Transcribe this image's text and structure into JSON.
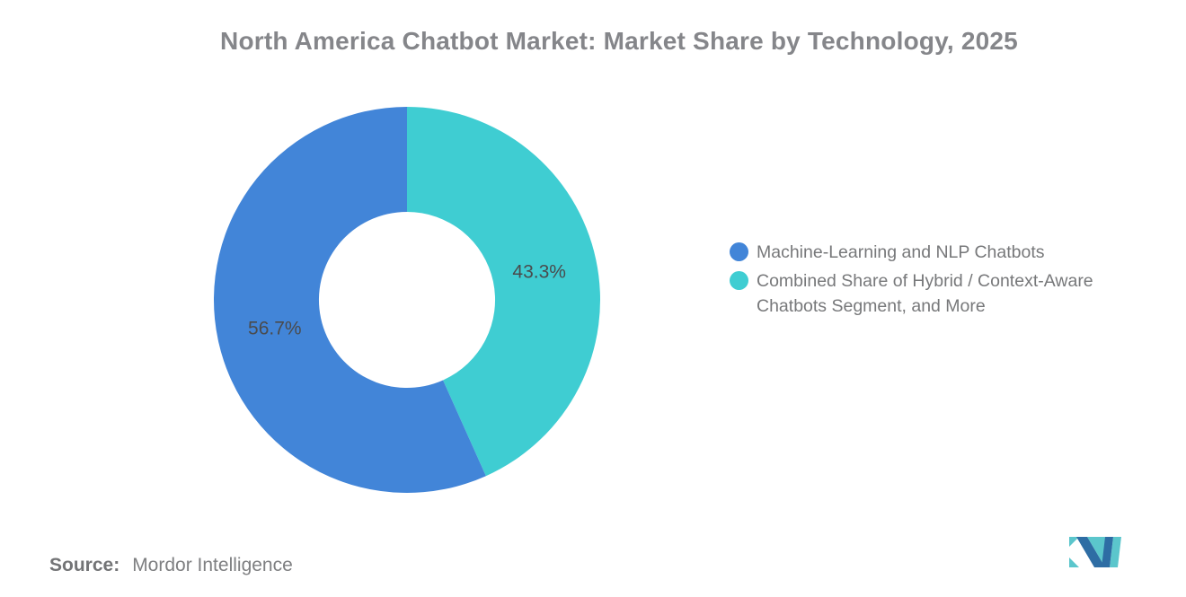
{
  "title": "North America Chatbot Market: Market Share by Technology, 2025",
  "chart_data": {
    "type": "pie",
    "subtype": "donut",
    "title": "North America Chatbot Market: Market Share by Technology, 2025",
    "start_angle_deg": 0,
    "direction": "clockwise",
    "inner_radius_ratio": 0.456,
    "label_radius_ratio": 0.7,
    "legend_position": "right",
    "slices": [
      {
        "label": "Combined Share of Hybrid / Context-Aware Chatbots Segment, and More",
        "value": 43.3,
        "data_label": "43.3%",
        "color": "#3FCDD2"
      },
      {
        "label": "Machine-Learning and NLP Chatbots",
        "value": 56.7,
        "data_label": "56.7%",
        "color": "#4285D8"
      }
    ]
  },
  "legend": {
    "items": [
      {
        "label": "Machine-Learning and NLP Chatbots",
        "color": "#4285D8"
      },
      {
        "label": "Combined Share of Hybrid / Context-Aware Chatbots Segment, and More",
        "color": "#3FCDD2"
      }
    ]
  },
  "footer": {
    "source_label": "Source:",
    "source_value": "Mordor Intelligence"
  },
  "logo": {
    "name": "mordor-intelligence-logo",
    "colors": {
      "blue": "#2E6DA4",
      "teal": "#5BC6CC"
    }
  }
}
